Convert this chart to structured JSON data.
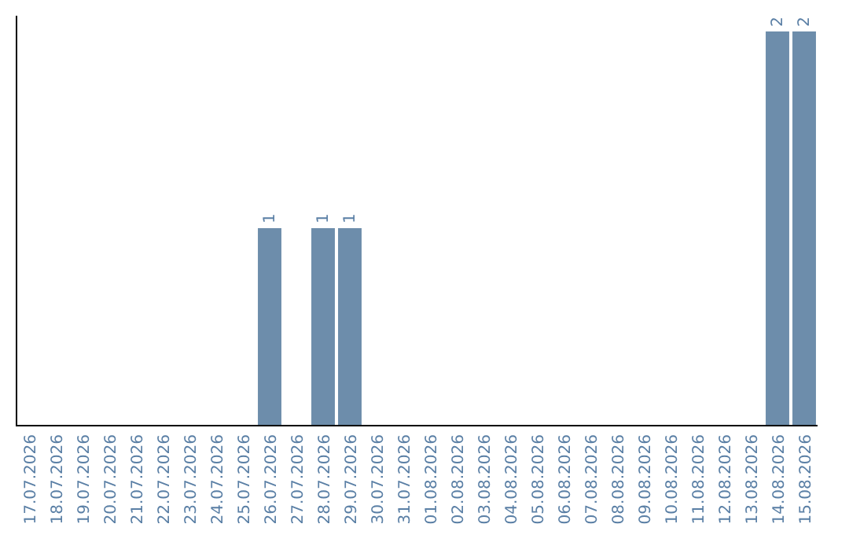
{
  "chart_data": {
    "type": "bar",
    "categories": [
      "17.07.2026",
      "18.07.2026",
      "19.07.2026",
      "20.07.2026",
      "21.07.2026",
      "22.07.2026",
      "23.07.2026",
      "24.07.2026",
      "25.07.2026",
      "26.07.2026",
      "27.07.2026",
      "28.07.2026",
      "29.07.2026",
      "30.07.2026",
      "31.07.2026",
      "01.08.2026",
      "02.08.2026",
      "03.08.2026",
      "04.08.2026",
      "05.08.2026",
      "06.08.2026",
      "07.08.2026",
      "08.08.2026",
      "09.08.2026",
      "10.08.2026",
      "11.08.2026",
      "12.08.2026",
      "13.08.2026",
      "14.08.2026",
      "15.08.2026"
    ],
    "values": [
      0,
      0,
      0,
      0,
      0,
      0,
      0,
      0,
      0,
      1,
      0,
      1,
      1,
      0,
      0,
      0,
      0,
      0,
      0,
      0,
      0,
      0,
      0,
      0,
      0,
      0,
      0,
      0,
      2,
      2
    ],
    "value_labels": [
      null,
      null,
      null,
      null,
      null,
      null,
      null,
      null,
      null,
      "1",
      null,
      "1",
      "1",
      null,
      null,
      null,
      null,
      null,
      null,
      null,
      null,
      null,
      null,
      null,
      null,
      null,
      null,
      null,
      "2",
      "2"
    ],
    "color": "#6d8dab"
  }
}
